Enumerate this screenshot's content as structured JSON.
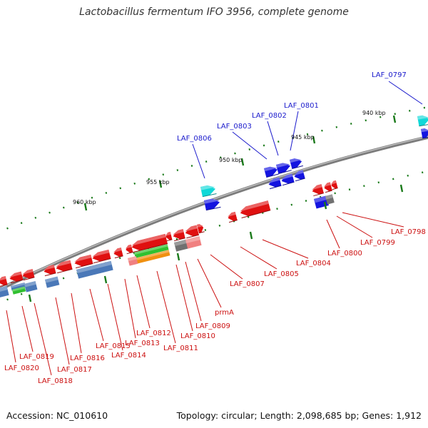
{
  "header": {
    "title": "Lactobacillus fermentum IFO 3956, complete genome"
  },
  "footer": {
    "accession": "Accession: NC_010610",
    "topology": "Topology: circular; Length: 2,098,685 bp; Genes: 1,912"
  },
  "colors": {
    "backbone": "#7c7c7c",
    "tick": "#1a7a1a",
    "forward_gene": "#1414e0",
    "forward_gene_light": "#10d8d8",
    "reverse_gene": "#e01010",
    "reverse_gene_light": "#f08080",
    "feature_steel": "#4a78b8",
    "feature_grey": "#707070",
    "feature_green": "#30c030",
    "feature_orange": "#f09010",
    "forward_label": "#1a1acc",
    "reverse_label": "#cc1010"
  },
  "scale": {
    "ticks": [
      {
        "kbp": 940,
        "label": "940 kbp"
      },
      {
        "kbp": 945,
        "label": "945 kbp"
      },
      {
        "kbp": 950,
        "label": "950 kbp"
      },
      {
        "kbp": 955,
        "label": "955 kbp"
      },
      {
        "kbp": 960,
        "label": "960 kbp"
      }
    ]
  },
  "genes": {
    "forward": [
      "LAF_0797",
      "LAF_0801",
      "LAF_0802",
      "LAF_0803",
      "LAF_0806"
    ],
    "reverse": [
      "LAF_0798",
      "LAF_0799",
      "LAF_0800",
      "LAF_0804",
      "LAF_0805",
      "LAF_0807",
      "prmA",
      "LAF_0809",
      "LAF_0810",
      "LAF_0811",
      "LAF_0812",
      "LAF_0813",
      "LAF_0814",
      "LAF_0815",
      "LAF_0816",
      "LAF_0817",
      "LAF_0818",
      "LAF_0819",
      "LAF_0820"
    ]
  }
}
